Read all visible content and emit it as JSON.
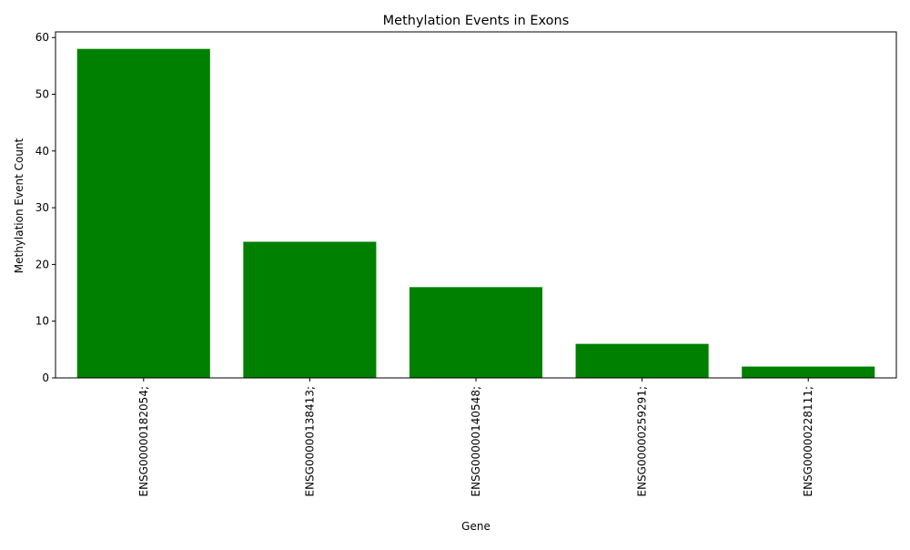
{
  "chart_data": {
    "type": "bar",
    "title": "Methylation Events in Exons",
    "xlabel": "Gene",
    "ylabel": "Methylation Event Count",
    "categories": [
      "ENSG00000182054;",
      "ENSG00000138413;",
      "ENSG00000140548;",
      "ENSG00000259291;",
      "ENSG00000228111;"
    ],
    "values": [
      58,
      24,
      16,
      6,
      2
    ],
    "ylim": [
      0,
      61
    ],
    "yticks": [
      0,
      10,
      20,
      30,
      40,
      50,
      60
    ],
    "grid": false,
    "legend": "none",
    "colors": {
      "bar": "#008000",
      "axis": "#000000",
      "background": "#ffffff"
    }
  }
}
